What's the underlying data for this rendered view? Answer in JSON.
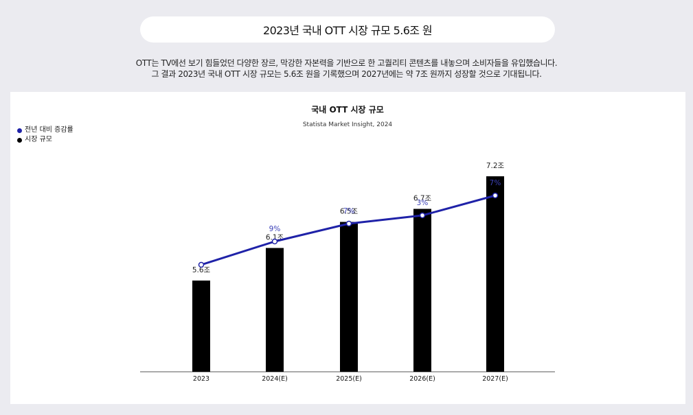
{
  "header": {
    "title": "2023년 국내 OTT 시장 규모 5.6조 원",
    "desc_line1": "OTT는 TV에선 보기 힘들었던 다양한 장르, 막강한 자본력을 기반으로 한 고퀄리티 콘텐츠를 내놓으며 소비자들을 유입했습니다.",
    "desc_line2": "그 결과 2023년 국내 OTT 시장 규모는 5.6조 원을 기록했으며 2027년에는 약 7조 원까지 성장할 것으로 기대됩니다."
  },
  "colors": {
    "line": "#1f22a8",
    "bar": "#000000",
    "line_label": "#3d42b8",
    "page_bg": "#ebebf0"
  },
  "chart_data": {
    "type": "bar",
    "title": "국내 OTT 시장 규모",
    "subtitle": "Statista Market Insight, 2024",
    "categories": [
      "2023",
      "2024(E)",
      "2025(E)",
      "2026(E)",
      "2027(E)"
    ],
    "series": [
      {
        "name": "시장 규모",
        "type": "bar",
        "values": [
          5.6,
          6.1,
          6.5,
          6.7,
          7.2
        ],
        "labels": [
          "5.6조",
          "6.1조",
          "6.5조",
          "6.7조",
          "7.2조"
        ],
        "legend_color": "#000000"
      },
      {
        "name": "전년 대비 증감률",
        "type": "line",
        "values": [
          null,
          9,
          7,
          3,
          7
        ],
        "labels": [
          "",
          "9%",
          "7%",
          "3%",
          "7%"
        ],
        "legend_color": "#1f22a8"
      }
    ],
    "legend_order": [
      "전년 대비 증감률",
      "시장 규모"
    ],
    "legend_position": "top-left",
    "grid": false,
    "xlabel": "",
    "ylabel": ""
  }
}
